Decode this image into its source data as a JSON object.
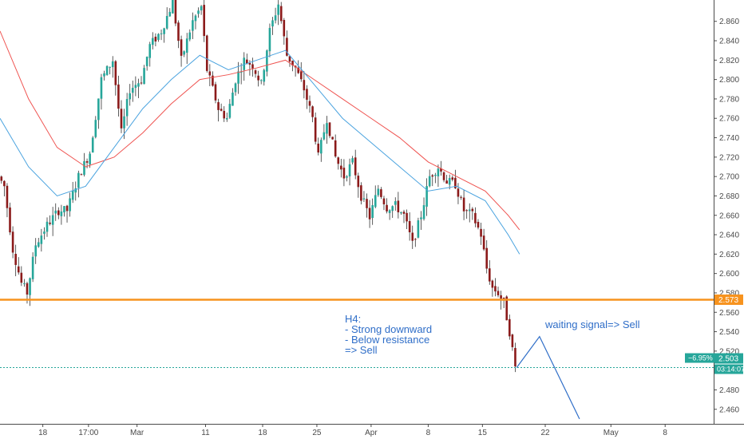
{
  "chart_data": {
    "type": "candlestick",
    "timeframe": "H4",
    "ylim": [
      2.445,
      2.882
    ],
    "xlim": [
      0,
      250
    ],
    "y_ticks": [
      "2.860",
      "2.840",
      "2.820",
      "2.800",
      "2.780",
      "2.760",
      "2.740",
      "2.720",
      "2.700",
      "2.680",
      "2.660",
      "2.640",
      "2.620",
      "2.600",
      "2.580",
      "2.560",
      "2.540",
      "2.520",
      "2.500",
      "2.480",
      "2.460"
    ],
    "x_ticks": [
      {
        "label": "18",
        "x": 15
      },
      {
        "label": "17:00",
        "x": 31
      },
      {
        "label": "Mar",
        "x": 48
      },
      {
        "label": "11",
        "x": 72
      },
      {
        "label": "18",
        "x": 92
      },
      {
        "label": "25",
        "x": 111
      },
      {
        "label": "Apr",
        "x": 130
      },
      {
        "label": "8",
        "x": 150
      },
      {
        "label": "15",
        "x": 169
      },
      {
        "label": "22",
        "x": 191
      },
      {
        "label": "May",
        "x": 214
      },
      {
        "label": "8",
        "x": 233
      }
    ],
    "anchors": [
      [
        0,
        2.7
      ],
      [
        2,
        2.69
      ],
      [
        5,
        2.625
      ],
      [
        8,
        2.59
      ],
      [
        10,
        2.58
      ],
      [
        13,
        2.63
      ],
      [
        17,
        2.65
      ],
      [
        21,
        2.665
      ],
      [
        24,
        2.665
      ],
      [
        28,
        2.7
      ],
      [
        32,
        2.725
      ],
      [
        36,
        2.8
      ],
      [
        40,
        2.82
      ],
      [
        43,
        2.745
      ],
      [
        46,
        2.79
      ],
      [
        50,
        2.8
      ],
      [
        53,
        2.835
      ],
      [
        57,
        2.85
      ],
      [
        61,
        2.88
      ],
      [
        64,
        2.82
      ],
      [
        68,
        2.86
      ],
      [
        71,
        2.875
      ],
      [
        73,
        2.81
      ],
      [
        77,
        2.77
      ],
      [
        80,
        2.76
      ],
      [
        83,
        2.8
      ],
      [
        86,
        2.82
      ],
      [
        89,
        2.815
      ],
      [
        92,
        2.795
      ],
      [
        95,
        2.85
      ],
      [
        98,
        2.878
      ],
      [
        101,
        2.825
      ],
      [
        104,
        2.812
      ],
      [
        107,
        2.79
      ],
      [
        110,
        2.76
      ],
      [
        112,
        2.72
      ],
      [
        115,
        2.76
      ],
      [
        118,
        2.72
      ],
      [
        121,
        2.7
      ],
      [
        124,
        2.715
      ],
      [
        127,
        2.68
      ],
      [
        130,
        2.658
      ],
      [
        133,
        2.688
      ],
      [
        136,
        2.668
      ],
      [
        139,
        2.67
      ],
      [
        142,
        2.66
      ],
      [
        145,
        2.63
      ],
      [
        148,
        2.66
      ],
      [
        151,
        2.7
      ],
      [
        154,
        2.71
      ],
      [
        157,
        2.695
      ],
      [
        160,
        2.692
      ],
      [
        163,
        2.665
      ],
      [
        166,
        2.66
      ],
      [
        169,
        2.64
      ],
      [
        171,
        2.605
      ],
      [
        173,
        2.585
      ],
      [
        175,
        2.58
      ],
      [
        177,
        2.57
      ],
      [
        179,
        2.54
      ],
      [
        181,
        2.503
      ]
    ],
    "ma_slow": [
      [
        0,
        2.85
      ],
      [
        10,
        2.78
      ],
      [
        20,
        2.73
      ],
      [
        30,
        2.71
      ],
      [
        40,
        2.72
      ],
      [
        50,
        2.745
      ],
      [
        60,
        2.775
      ],
      [
        70,
        2.8
      ],
      [
        80,
        2.805
      ],
      [
        90,
        2.812
      ],
      [
        100,
        2.82
      ],
      [
        110,
        2.8
      ],
      [
        120,
        2.78
      ],
      [
        130,
        2.76
      ],
      [
        140,
        2.74
      ],
      [
        150,
        2.715
      ],
      [
        160,
        2.7
      ],
      [
        170,
        2.685
      ],
      [
        178,
        2.66
      ],
      [
        182,
        2.645
      ]
    ],
    "ma_fast": [
      [
        0,
        2.76
      ],
      [
        10,
        2.71
      ],
      [
        20,
        2.68
      ],
      [
        30,
        2.69
      ],
      [
        40,
        2.73
      ],
      [
        50,
        2.77
      ],
      [
        60,
        2.8
      ],
      [
        70,
        2.825
      ],
      [
        80,
        2.81
      ],
      [
        90,
        2.82
      ],
      [
        100,
        2.83
      ],
      [
        110,
        2.795
      ],
      [
        120,
        2.76
      ],
      [
        130,
        2.735
      ],
      [
        140,
        2.71
      ],
      [
        150,
        2.685
      ],
      [
        160,
        2.69
      ],
      [
        170,
        2.675
      ],
      [
        178,
        2.64
      ],
      [
        182,
        2.62
      ]
    ],
    "resistance": {
      "value": 2.573,
      "label": "2.573",
      "color": "#f7931e"
    },
    "current": {
      "value": 2.503,
      "label": "2.503",
      "change": "−6.95%",
      "countdown": "03:14:07",
      "color": "#26a69a"
    },
    "forecast_path": [
      [
        181,
        2.503
      ],
      [
        189,
        2.535
      ],
      [
        203,
        2.45
      ]
    ],
    "annotation_h4": [
      "H4:",
      "- Strong downward",
      "- Below resistance",
      "=> Sell"
    ],
    "annotation_signal": "waiting signal=> Sell",
    "colors": {
      "up": "#26a69a",
      "down": "#8b1a1a",
      "ma_fast": "#4aa3df",
      "ma_slow": "#ef5350",
      "text_blue": "#2f6ec8",
      "axis": "#4a4a4a"
    }
  }
}
